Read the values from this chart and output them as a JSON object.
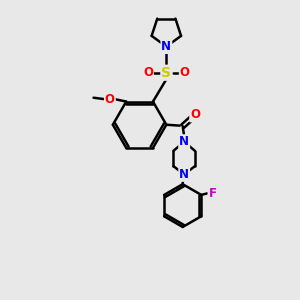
{
  "bg_color": "#e8e8e8",
  "bond_color": "#000000",
  "bond_width": 1.8,
  "atom_colors": {
    "N": "#0000ee",
    "O": "#ff0000",
    "S": "#cccc00",
    "F": "#cc00cc",
    "C": "#000000"
  },
  "font_size": 8.5
}
